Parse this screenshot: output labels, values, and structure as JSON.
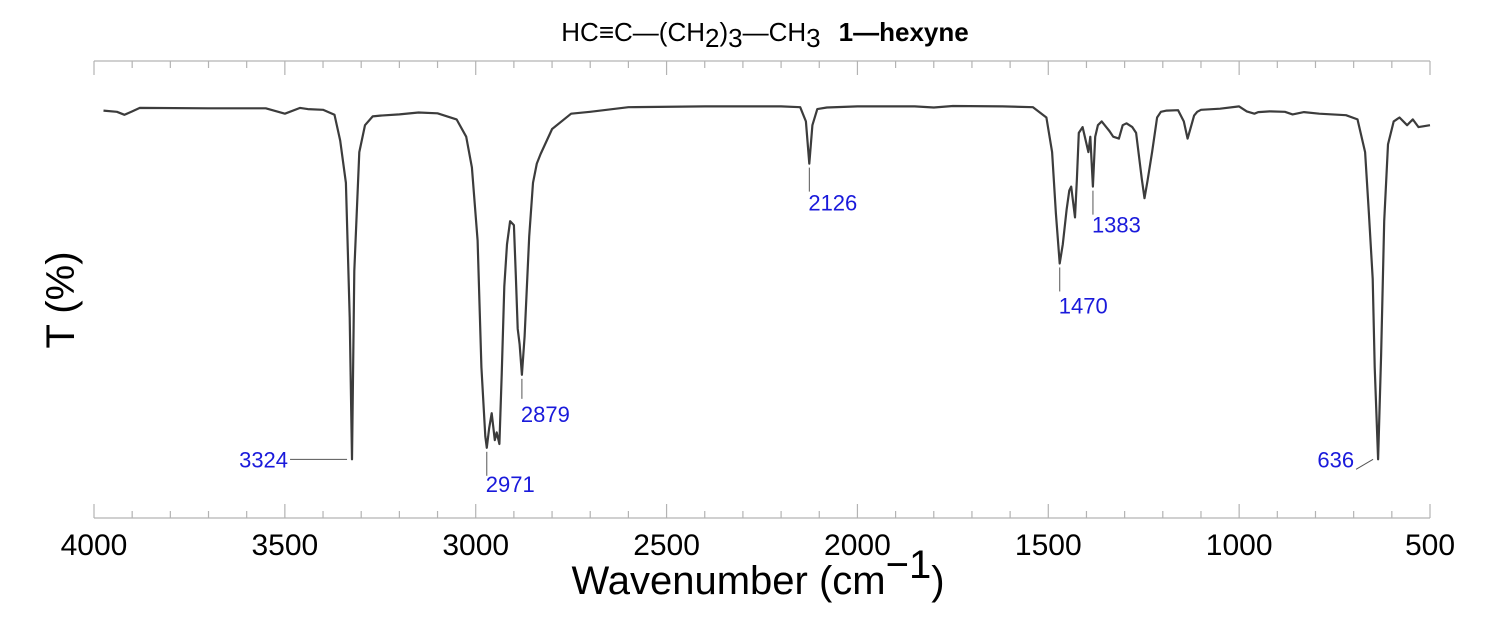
{
  "chart_data": {
    "type": "line",
    "title": {
      "formula_parts": {
        "p1": "HC≡C—(CH",
        "sub1": "2",
        "p2": ")",
        "sub2": "3",
        "p3": "—CH",
        "sub3": "3"
      },
      "name": "1—hexyne"
    },
    "xlabel": {
      "main": "Wavenumber (cm",
      "sup": "−1",
      "close": ")"
    },
    "ylabel": "T (%)",
    "xlim": [
      4000,
      500
    ],
    "ylim": [
      0,
      100
    ],
    "x_ticks": [
      4000,
      3500,
      3000,
      2500,
      2000,
      1500,
      1000,
      500
    ],
    "x_tick_labels": [
      "4000",
      "3500",
      "3000",
      "2500",
      "2000",
      "1500",
      "1000",
      "500"
    ],
    "minor_tick_step": 100,
    "series": [
      {
        "name": "1-hexyne IR spectrum",
        "x": [
          3975,
          3940,
          3920,
          3900,
          3880,
          3700,
          3550,
          3500,
          3460,
          3440,
          3400,
          3370,
          3355,
          3340,
          3330,
          3324,
          3318,
          3305,
          3290,
          3270,
          3250,
          3200,
          3150,
          3100,
          3050,
          3025,
          3010,
          2995,
          2985,
          2975,
          2971,
          2965,
          2958,
          2950,
          2945,
          2938,
          2932,
          2925,
          2918,
          2910,
          2900,
          2895,
          2890,
          2885,
          2879,
          2872,
          2860,
          2850,
          2840,
          2830,
          2800,
          2750,
          2700,
          2600,
          2400,
          2200,
          2150,
          2135,
          2126,
          2118,
          2105,
          2080,
          2000,
          1850,
          1800,
          1750,
          1620,
          1540,
          1505,
          1490,
          1480,
          1470,
          1462,
          1452,
          1445,
          1440,
          1435,
          1430,
          1425,
          1420,
          1410,
          1395,
          1390,
          1383,
          1377,
          1370,
          1360,
          1340,
          1330,
          1315,
          1305,
          1295,
          1280,
          1270,
          1255,
          1248,
          1240,
          1228,
          1215,
          1205,
          1190,
          1160,
          1145,
          1135,
          1125,
          1118,
          1110,
          1100,
          1050,
          1000,
          980,
          960,
          950,
          920,
          880,
          860,
          830,
          790,
          720,
          690,
          670,
          660,
          650,
          645,
          636,
          628,
          620,
          610,
          595,
          580,
          560,
          545,
          530,
          500
        ],
        "y": [
          98.8,
          98.5,
          97.7,
          98.6,
          99.5,
          99.4,
          99.4,
          98.0,
          99.5,
          99.2,
          99.0,
          97.7,
          91.0,
          80.0,
          45.0,
          8.0,
          57.0,
          88.0,
          95.0,
          97.3,
          97.5,
          97.8,
          98.3,
          98.1,
          96.5,
          92.0,
          84.0,
          65.0,
          32.0,
          14.0,
          11.0,
          16.0,
          20.0,
          13.0,
          15.0,
          12.0,
          30.0,
          53.0,
          64.0,
          70.0,
          69.0,
          56.0,
          42.0,
          38.0,
          30.0,
          40.0,
          66.0,
          80.0,
          85.0,
          87.5,
          94.0,
          98.0,
          98.5,
          99.7,
          99.9,
          99.9,
          99.7,
          96.0,
          85.0,
          95.0,
          99.2,
          99.6,
          99.9,
          99.9,
          99.6,
          100.0,
          99.9,
          99.7,
          97.0,
          88.0,
          72.0,
          59.0,
          64.0,
          73.0,
          78.0,
          79.0,
          75.0,
          71.0,
          81.0,
          93.0,
          94.5,
          88.0,
          92.0,
          79.0,
          92.0,
          95.0,
          96.0,
          93.5,
          92.0,
          91.5,
          95.0,
          95.5,
          94.5,
          93.0,
          81.0,
          76.0,
          80.5,
          88.0,
          97.0,
          98.5,
          98.8,
          98.9,
          96.0,
          91.5,
          95.0,
          97.5,
          98.5,
          99.0,
          99.3,
          99.9,
          98.6,
          98.0,
          98.4,
          98.6,
          98.5,
          97.8,
          98.4,
          98.0,
          97.6,
          96.5,
          88.0,
          72.0,
          55.0,
          32.0,
          8.0,
          35.0,
          70.0,
          90.0,
          96.0,
          97.0,
          95.0,
          96.5,
          94.5,
          95.0
        ]
      }
    ],
    "annotations": [
      {
        "label": "3324",
        "x": 3324,
        "y": 8.0
      },
      {
        "label": "2971",
        "x": 2971,
        "y": 11.0
      },
      {
        "label": "2879",
        "x": 2879,
        "y": 30.0
      },
      {
        "label": "2126",
        "x": 2126,
        "y": 85.0
      },
      {
        "label": "1470",
        "x": 1470,
        "y": 59.0
      },
      {
        "label": "1383",
        "x": 1383,
        "y": 79.0
      },
      {
        "label": "636",
        "x": 636,
        "y": 8.0
      }
    ],
    "grid": false,
    "colors": {
      "line": "#3c3c3c",
      "annotation_text": "#1a1adb",
      "frame": "#b3b3b3"
    }
  }
}
